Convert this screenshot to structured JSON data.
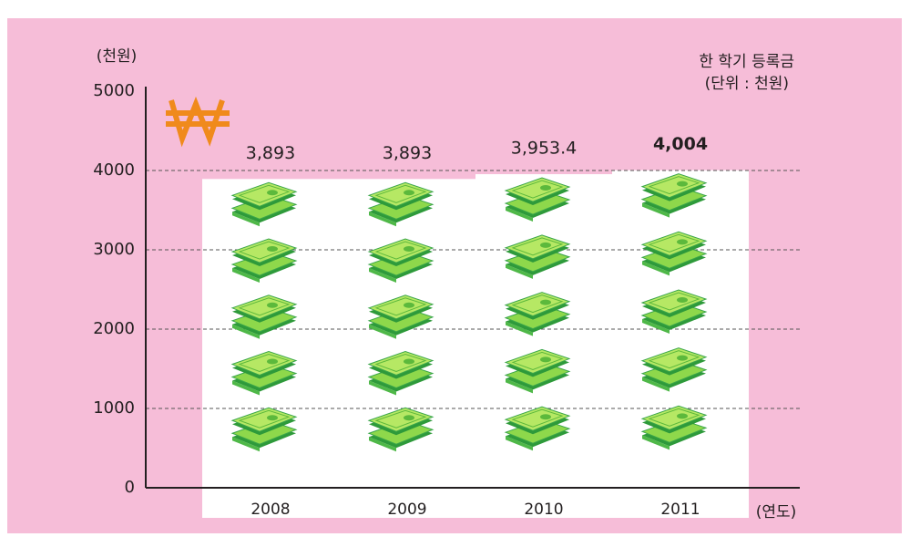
{
  "chart_data": {
    "type": "bar",
    "y_unit_label": "(천원)",
    "x_unit_label": "(연도)",
    "note_title": "한 학기 등록금",
    "note_unit": "(단위 : 천원)",
    "categories": [
      "2008",
      "2009",
      "2010",
      "2011"
    ],
    "values": [
      3893,
      3893,
      3953.4,
      4004
    ],
    "value_labels": [
      "3,893",
      "3,893",
      "3,953.4",
      "4,004"
    ],
    "color": "#ffffff",
    "background": "#f6bdd8",
    "ylim": [
      0,
      5000
    ],
    "yticks": [
      0,
      1000,
      2000,
      3000,
      4000,
      5000
    ],
    "grid": true
  }
}
